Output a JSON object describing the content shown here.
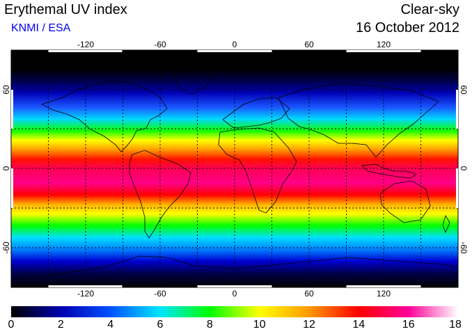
{
  "header": {
    "title": "Erythemal UV index",
    "credit": "KNMI / ESA",
    "condition": "Clear-sky",
    "date": "16 October 2012"
  },
  "map": {
    "projection": "equirectangular",
    "lon_range": [
      -180,
      180
    ],
    "lat_range": [
      -90,
      90
    ],
    "lon_ticks": [
      "-120",
      "-60",
      "0",
      "60",
      "120"
    ],
    "lat_ticks": [
      "60",
      "0",
      "-60"
    ],
    "grid": true,
    "grid_style": "dotted",
    "coastlines": true,
    "background": "#000000"
  },
  "colorbar": {
    "min": 0,
    "max": 18,
    "tick_labels": [
      "0",
      "2",
      "4",
      "6",
      "8",
      "10",
      "12",
      "14",
      "16",
      "18"
    ],
    "colormap": [
      "#000000",
      "#0000b0",
      "#0050ff",
      "#00e5ff",
      "#00ff00",
      "#ffff00",
      "#ff9900",
      "#ff0000",
      "#ff0099",
      "#ffffff"
    ]
  }
}
